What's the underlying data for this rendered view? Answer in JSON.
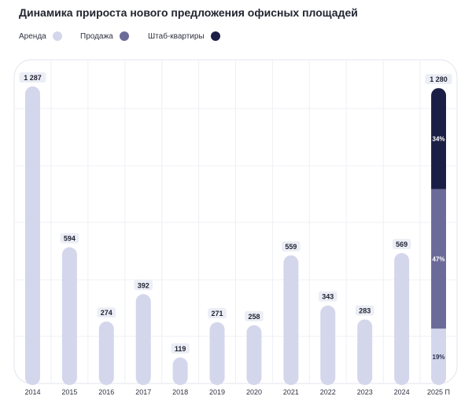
{
  "chart_data": {
    "type": "bar",
    "title": "Динамика прироста нового предложения офисных площадей",
    "categories": [
      "2014",
      "2015",
      "2016",
      "2017",
      "2018",
      "2019",
      "2020",
      "2021",
      "2022",
      "2023",
      "2024",
      "2025 П"
    ],
    "values": [
      1287,
      594,
      274,
      392,
      119,
      271,
      258,
      559,
      343,
      283,
      569,
      1280
    ],
    "value_labels": [
      "1 287",
      "594",
      "274",
      "392",
      "119",
      "271",
      "258",
      "559",
      "343",
      "283",
      "569",
      "1 280"
    ],
    "ylim": [
      0,
      1287
    ],
    "grid": true,
    "legend_position": "top-left",
    "series": [
      {
        "name": "Аренда",
        "color": "#d4d6ec"
      },
      {
        "name": "Продажа",
        "color": "#6b6a99"
      },
      {
        "name": "Штаб-квартиры",
        "color": "#1c1f45"
      }
    ],
    "stacked_last": {
      "category": "2025 П",
      "shares": [
        {
          "series": "Аренда",
          "pct": 19,
          "label": "19%"
        },
        {
          "series": "Продажа",
          "pct": 47,
          "label": "47%"
        },
        {
          "series": "Штаб-квартиры",
          "pct": 34,
          "label": "34%"
        }
      ]
    }
  }
}
